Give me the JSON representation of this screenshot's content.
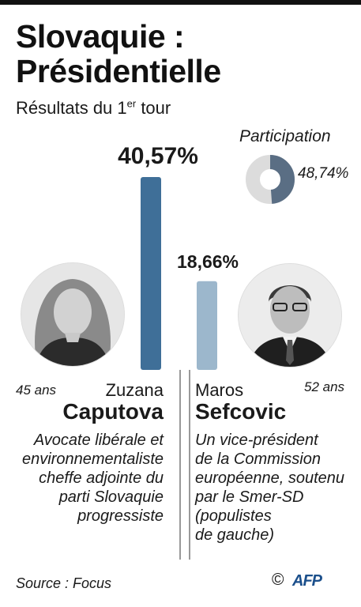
{
  "header": {
    "title_line1": "Slovaquie :",
    "title_line2": "Présidentielle",
    "subtitle_pre": "Résultats du 1",
    "subtitle_sup": "er",
    "subtitle_post": " tour"
  },
  "participation": {
    "label": "Participation",
    "value_label": "48,74%",
    "value": 48.74,
    "colors": {
      "filled": "#5a6e84",
      "empty": "#dcdcdc"
    }
  },
  "chart_data": {
    "type": "bar",
    "categories": [
      "Zuzana Caputova",
      "Maros Sefcovic"
    ],
    "values": [
      40.57,
      18.66
    ],
    "value_labels": [
      "40,57%",
      "18,66%"
    ],
    "title": "Slovaquie : Présidentielle",
    "subtitle": "Résultats du 1er tour",
    "ylim": [
      0,
      40.57
    ],
    "colors": [
      "#3f6f98",
      "#9cb7cc"
    ]
  },
  "candidates": [
    {
      "age": "45 ans",
      "first_name": "Zuzana",
      "last_name": "Caputova",
      "description_lines": [
        "Avocate libérale et",
        "environnementaliste",
        "cheffe adjointe du",
        "parti Slovaquie",
        "progressiste"
      ]
    },
    {
      "age": "52 ans",
      "first_name": "Maros",
      "last_name": "Sefcovic",
      "description_lines": [
        "Un vice-président",
        "de la Commission",
        "européenne, soutenu",
        "par le Smer-SD",
        "(populistes",
        "de gauche)"
      ]
    }
  ],
  "footer": {
    "source": "Source : Focus",
    "copyright": "©",
    "logo": "AFP"
  }
}
